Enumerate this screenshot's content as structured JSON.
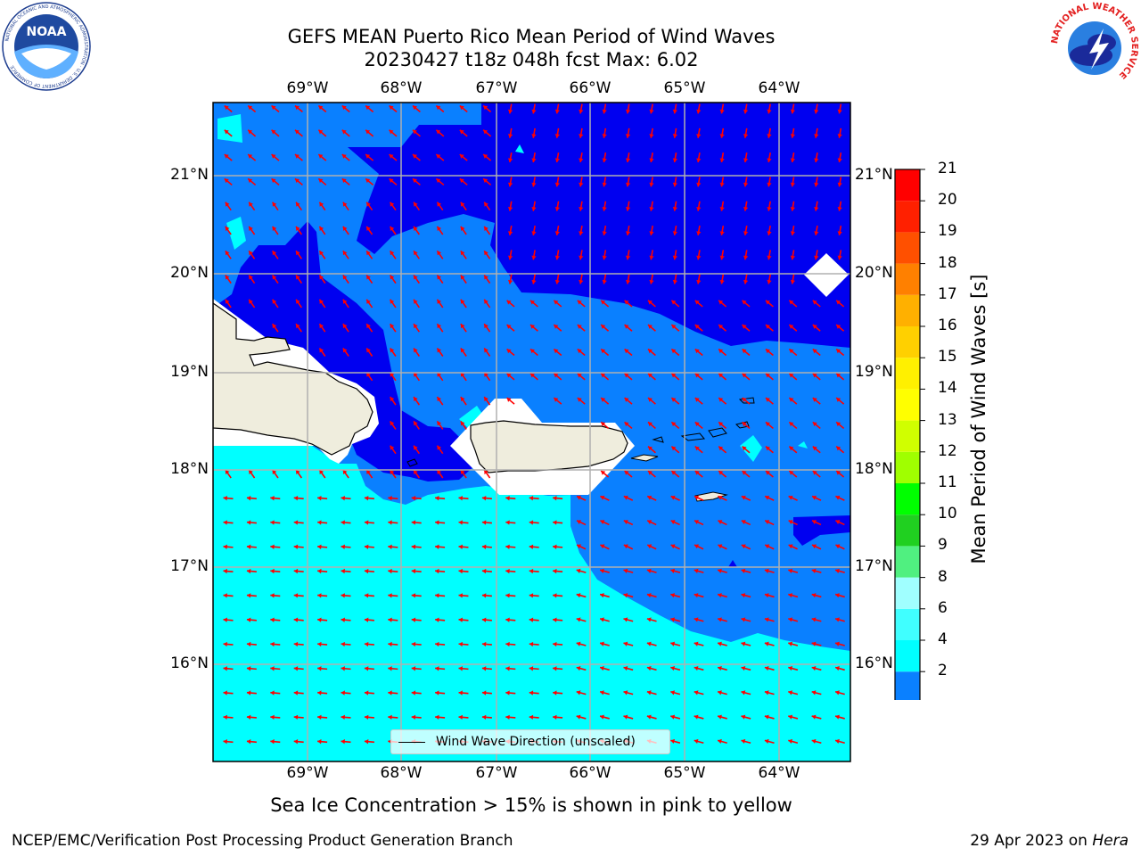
{
  "header": {
    "title_line1": "GEFS MEAN Puerto Rico Mean Period of Wind Waves",
    "title_line2": "20230427 t18z 048h fcst   Max: 6.02"
  },
  "logos": {
    "left": "NOAA",
    "left_ring_text": "NATIONAL OCEANIC AND ATMOSPHERIC ADMINISTRATION · U.S. DEPARTMENT OF COMMERCE",
    "right_ring_text": "NATIONAL WEATHER SERVICE"
  },
  "map": {
    "lon_labels": [
      "69°W",
      "68°W",
      "67°W",
      "66°W",
      "65°W",
      "64°W"
    ],
    "lat_labels": [
      "21°N",
      "20°N",
      "19°N",
      "18°N",
      "17°N",
      "16°N"
    ],
    "legend_label": "Wind Wave Direction (unscaled)",
    "colors": {
      "ocean_2_4": "#0a80ff",
      "ocean_under_2": "#0000f0",
      "ocean_4_6": "#00ffff",
      "land": "#efeddd",
      "arrows": "#ff0000"
    }
  },
  "colorbar": {
    "label": "Mean Period of Wind Waves [s]",
    "ticks": [
      "2",
      "4",
      "6",
      "8",
      "9",
      "10",
      "11",
      "12",
      "13",
      "14",
      "15",
      "16",
      "17",
      "18",
      "19",
      "20",
      "21"
    ],
    "colors": [
      "#0000ff",
      "#0a80ff",
      "#00ffff",
      "#40ffff",
      "#a0ffff",
      "#50f080",
      "#20d020",
      "#00ff00",
      "#a0ff00",
      "#d0ff00",
      "#ffff00",
      "#fff000",
      "#ffd000",
      "#ffb000",
      "#ff8000",
      "#ff5000",
      "#ff2000",
      "#ff0000"
    ]
  },
  "footer": {
    "note": "Sea Ice Concentration > 15% is shown in pink to yellow",
    "left": "NCEP/EMC/Verification Post Processing Product Generation Branch",
    "right_prefix": "29 Apr 2023 on ",
    "right_host": "Hera"
  }
}
